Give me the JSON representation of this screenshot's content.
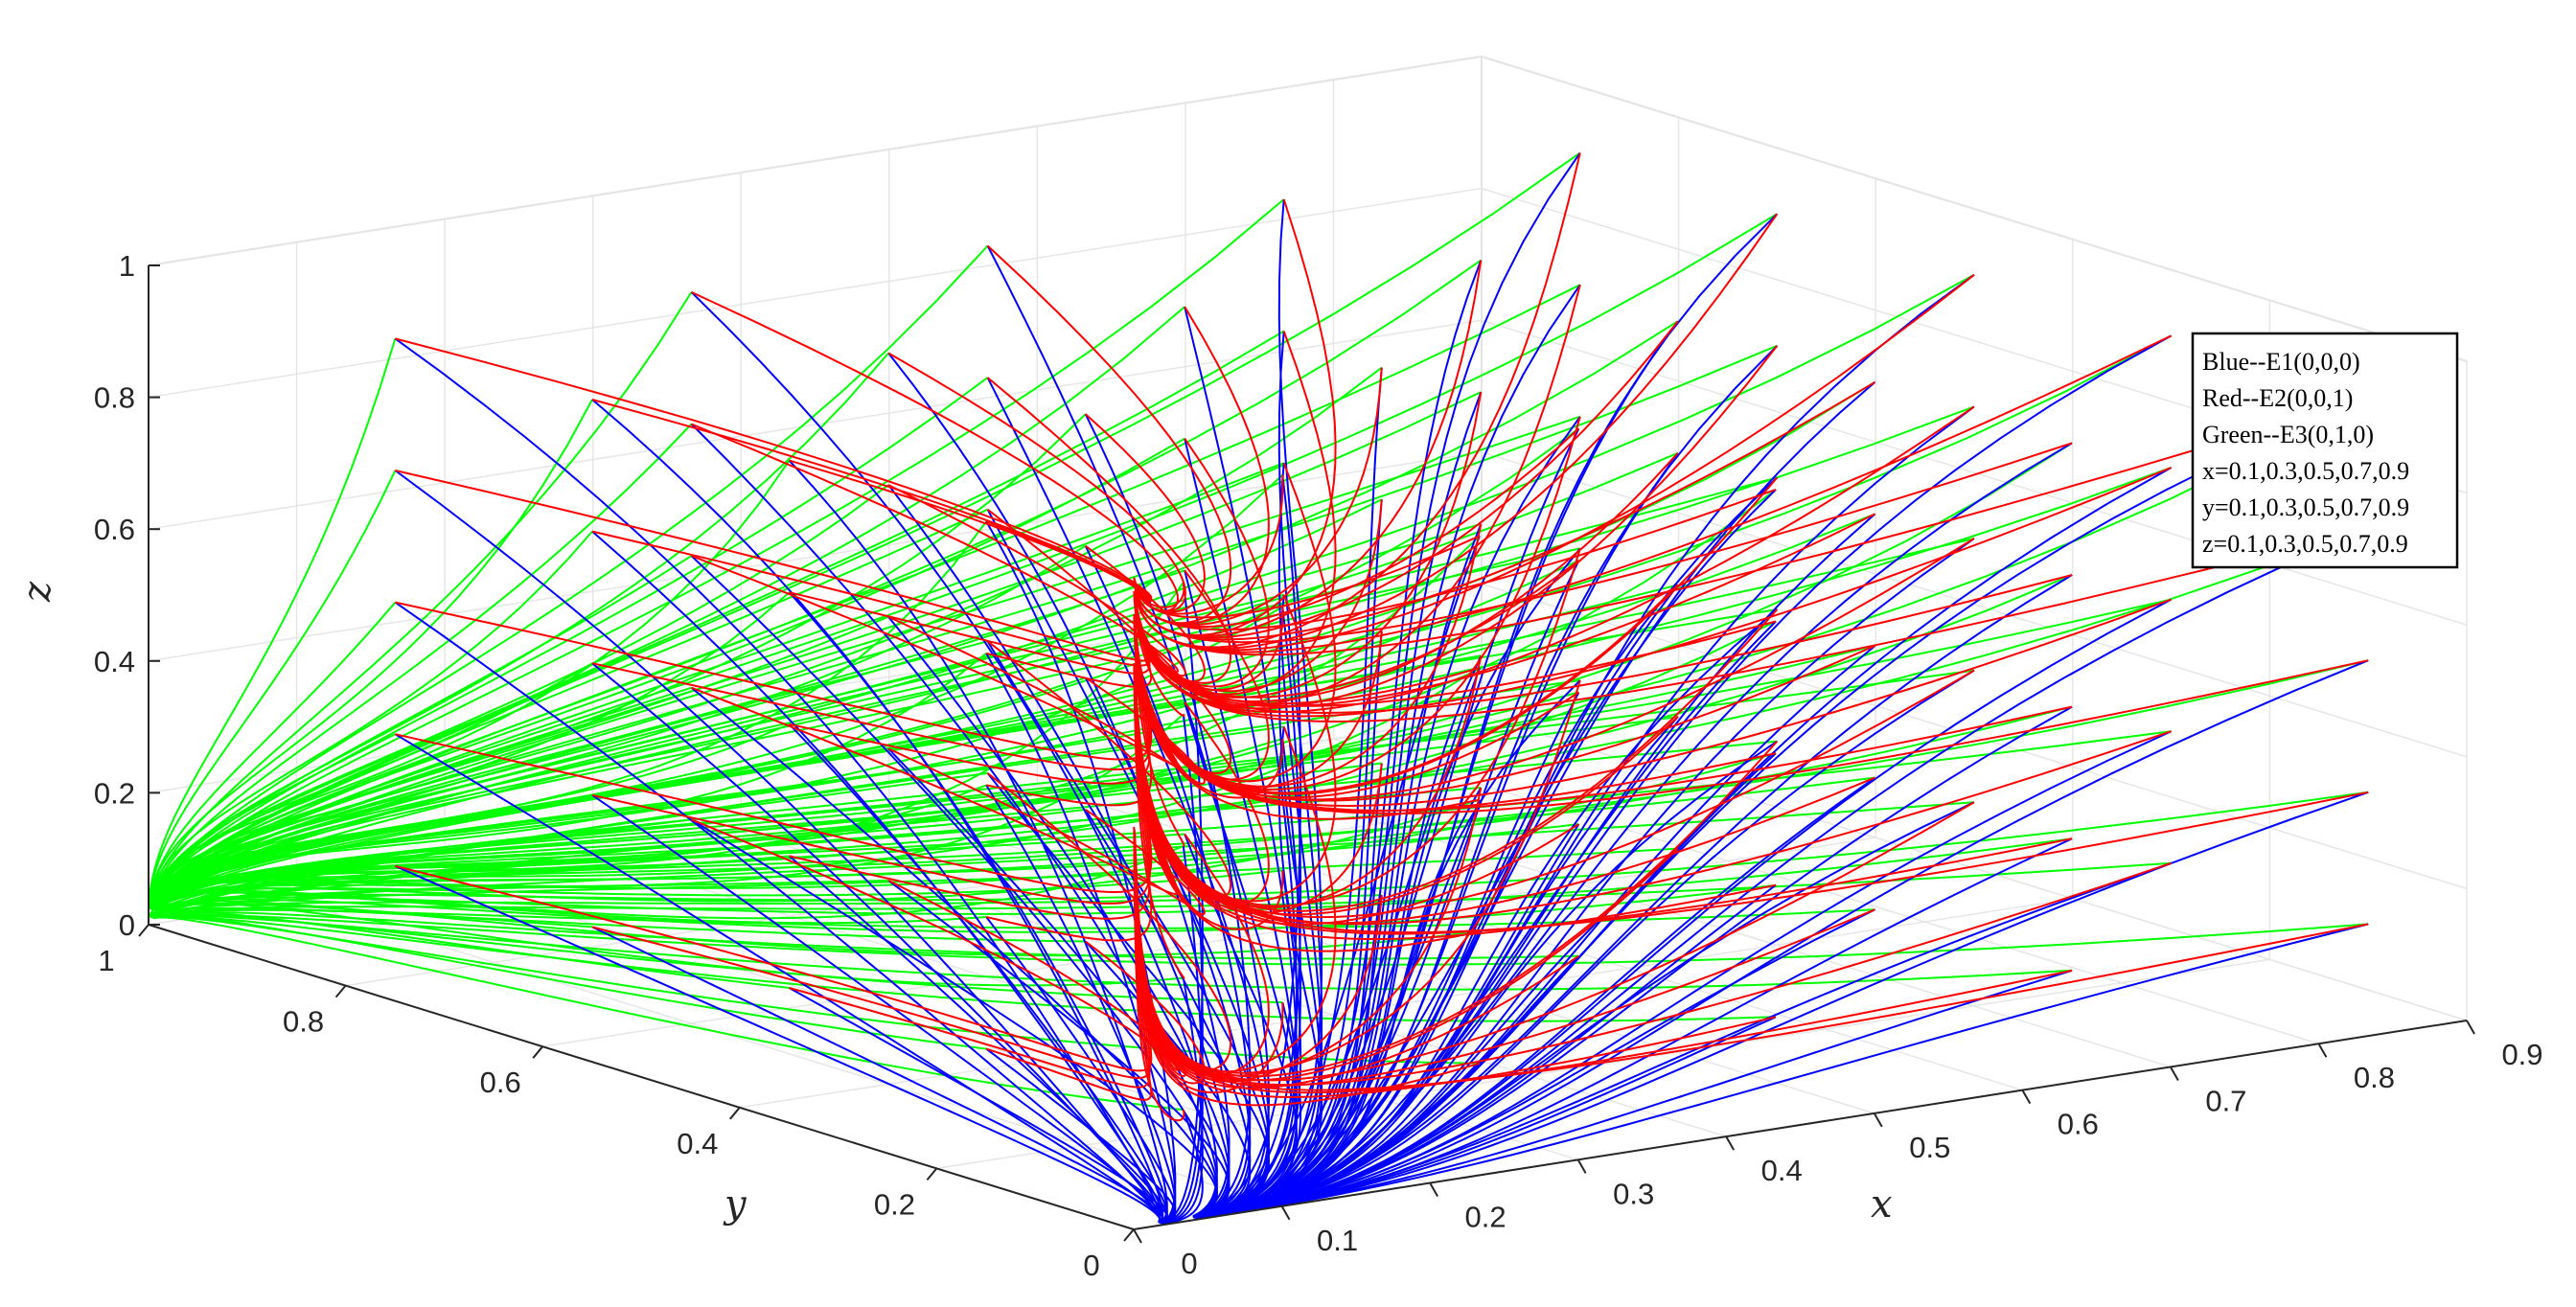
{
  "chart_data": {
    "type": "line",
    "subtype": "3d-trajectories",
    "title": "",
    "xlabel": "x",
    "ylabel": "y",
    "zlabel": "z",
    "xlim": [
      0,
      0.9
    ],
    "ylim": [
      0,
      1
    ],
    "zlim": [
      0,
      1
    ],
    "x_ticks": [
      "0",
      "0.1",
      "0.2",
      "0.3",
      "0.4",
      "0.5",
      "0.6",
      "0.7",
      "0.8",
      "0.9"
    ],
    "y_ticks": [
      "0",
      "0.2",
      "0.4",
      "0.6",
      "0.8",
      "1"
    ],
    "z_ticks": [
      "0",
      "0.2",
      "0.4",
      "0.6",
      "0.8",
      "1"
    ],
    "grid": true,
    "legend_position": "top-right",
    "legend": [
      "Blue--E1(0,0,0)",
      "Red--E2(0,0,1)",
      "Green--E3(0,1,0)",
      "x=0.1,0.3,0.5,0.7,0.9",
      "y=0.1,0.3,0.5,0.7,0.9",
      "z=0.1,0.3,0.5,0.7,0.9"
    ],
    "initial_values": [
      0.1,
      0.3,
      0.5,
      0.7,
      0.9
    ],
    "series": [
      {
        "color": "#0000ff",
        "attractor": [
          0,
          0,
          0
        ]
      },
      {
        "color": "#ff0000",
        "attractor": [
          0,
          0,
          1
        ]
      },
      {
        "color": "#00ff00",
        "attractor": [
          0,
          1,
          0
        ]
      }
    ]
  }
}
